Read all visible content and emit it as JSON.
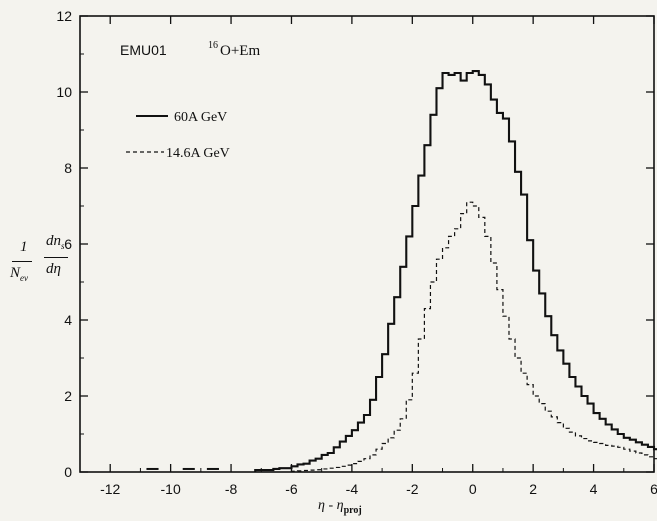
{
  "chart_data": {
    "type": "line",
    "title": "EMU01  16O+Em",
    "title_parts": {
      "experiment": "EMU01",
      "isotope_mass": "16",
      "reaction": "O+Em"
    },
    "xlabel": "η − η_proj",
    "ylabel": "1/N_ev · dn_s/dη",
    "xlim": [
      -13,
      6
    ],
    "ylim": [
      0,
      12
    ],
    "xticks": [
      -12,
      -10,
      -8,
      -6,
      -4,
      -2,
      0,
      2,
      4,
      6
    ],
    "yticks": [
      0,
      2,
      4,
      6,
      8,
      10,
      12
    ],
    "legend_position": "top-left",
    "series": [
      {
        "name": "60A GeV",
        "style": "solid",
        "bin_width": 0.2,
        "x_start": -7.2,
        "values": [
          0.05,
          0.05,
          0.05,
          0.08,
          0.1,
          0.1,
          0.15,
          0.2,
          0.22,
          0.3,
          0.35,
          0.45,
          0.5,
          0.65,
          0.8,
          0.95,
          1.1,
          1.3,
          1.5,
          1.9,
          2.5,
          3.1,
          3.9,
          4.6,
          5.4,
          6.2,
          7.0,
          7.8,
          8.6,
          9.4,
          10.1,
          10.5,
          10.45,
          10.5,
          10.3,
          10.5,
          10.55,
          10.45,
          10.2,
          9.8,
          9.45,
          9.3,
          8.7,
          7.9,
          7.3,
          6.1,
          5.3,
          4.7,
          4.1,
          3.6,
          3.2,
          2.85,
          2.5,
          2.25,
          2.0,
          1.8,
          1.55,
          1.4,
          1.25,
          1.12,
          1.0,
          0.9,
          0.85,
          0.78,
          0.72,
          0.66,
          0.6,
          0.55,
          0.5,
          0.45,
          0.4,
          0.32,
          0.28,
          0.22,
          0.16,
          0.12,
          0.08,
          0.05,
          0.04,
          0.03,
          0.02,
          0.01,
          0.01,
          0.01,
          0.01,
          0.01
        ]
      },
      {
        "name": "14.6A GeV",
        "style": "dashed",
        "bin_width": 0.2,
        "x_start": -6.0,
        "values": [
          0.02,
          0.03,
          0.04,
          0.05,
          0.06,
          0.08,
          0.1,
          0.12,
          0.15,
          0.18,
          0.22,
          0.28,
          0.35,
          0.45,
          0.6,
          0.75,
          0.9,
          1.1,
          1.4,
          1.9,
          2.6,
          3.5,
          4.3,
          5.0,
          5.6,
          5.9,
          6.2,
          6.4,
          6.8,
          7.1,
          7.0,
          6.7,
          6.2,
          5.5,
          4.8,
          4.1,
          3.5,
          3.0,
          2.6,
          2.3,
          2.0,
          1.8,
          1.6,
          1.45,
          1.3,
          1.15,
          1.05,
          0.95,
          0.88,
          0.82,
          0.78,
          0.75,
          0.7,
          0.68,
          0.65,
          0.6,
          0.55,
          0.5,
          0.45,
          0.4,
          0.35,
          0.3,
          0.25,
          0.2,
          0.18,
          0.15,
          0.12,
          0.1,
          0.08,
          0.05,
          0.04,
          0.03,
          0.02,
          0.02,
          0.01,
          0.01,
          0.01,
          0.01,
          0.01,
          0.01,
          0.01,
          0.01,
          0.01,
          0.01,
          0.01,
          0.01,
          0.01,
          0.01,
          0.01,
          0.01,
          0.01,
          0.01,
          0.01,
          0.01,
          0.01,
          0.01,
          0.01,
          0.01,
          0.01
        ]
      }
    ],
    "isolated_low_bins": {
      "x": [
        -10.8,
        -9.6,
        -8.8
      ],
      "y": [
        0.08,
        0.08,
        0.08
      ]
    }
  },
  "legend": {
    "solid_label": "60A GeV",
    "dashed_label": "14.6A GeV"
  },
  "labels": {
    "y_numerator_1": "1",
    "y_denominator_1": "N",
    "y_denominator_1_sub": "ev",
    "y_numerator_2": "dn",
    "y_numerator_2_sub": "s",
    "y_denominator_2": "dη",
    "x_main": "η - η",
    "x_sub": "proj"
  },
  "colors": {
    "ink": "#111111",
    "paper": "#f4f3ee"
  }
}
